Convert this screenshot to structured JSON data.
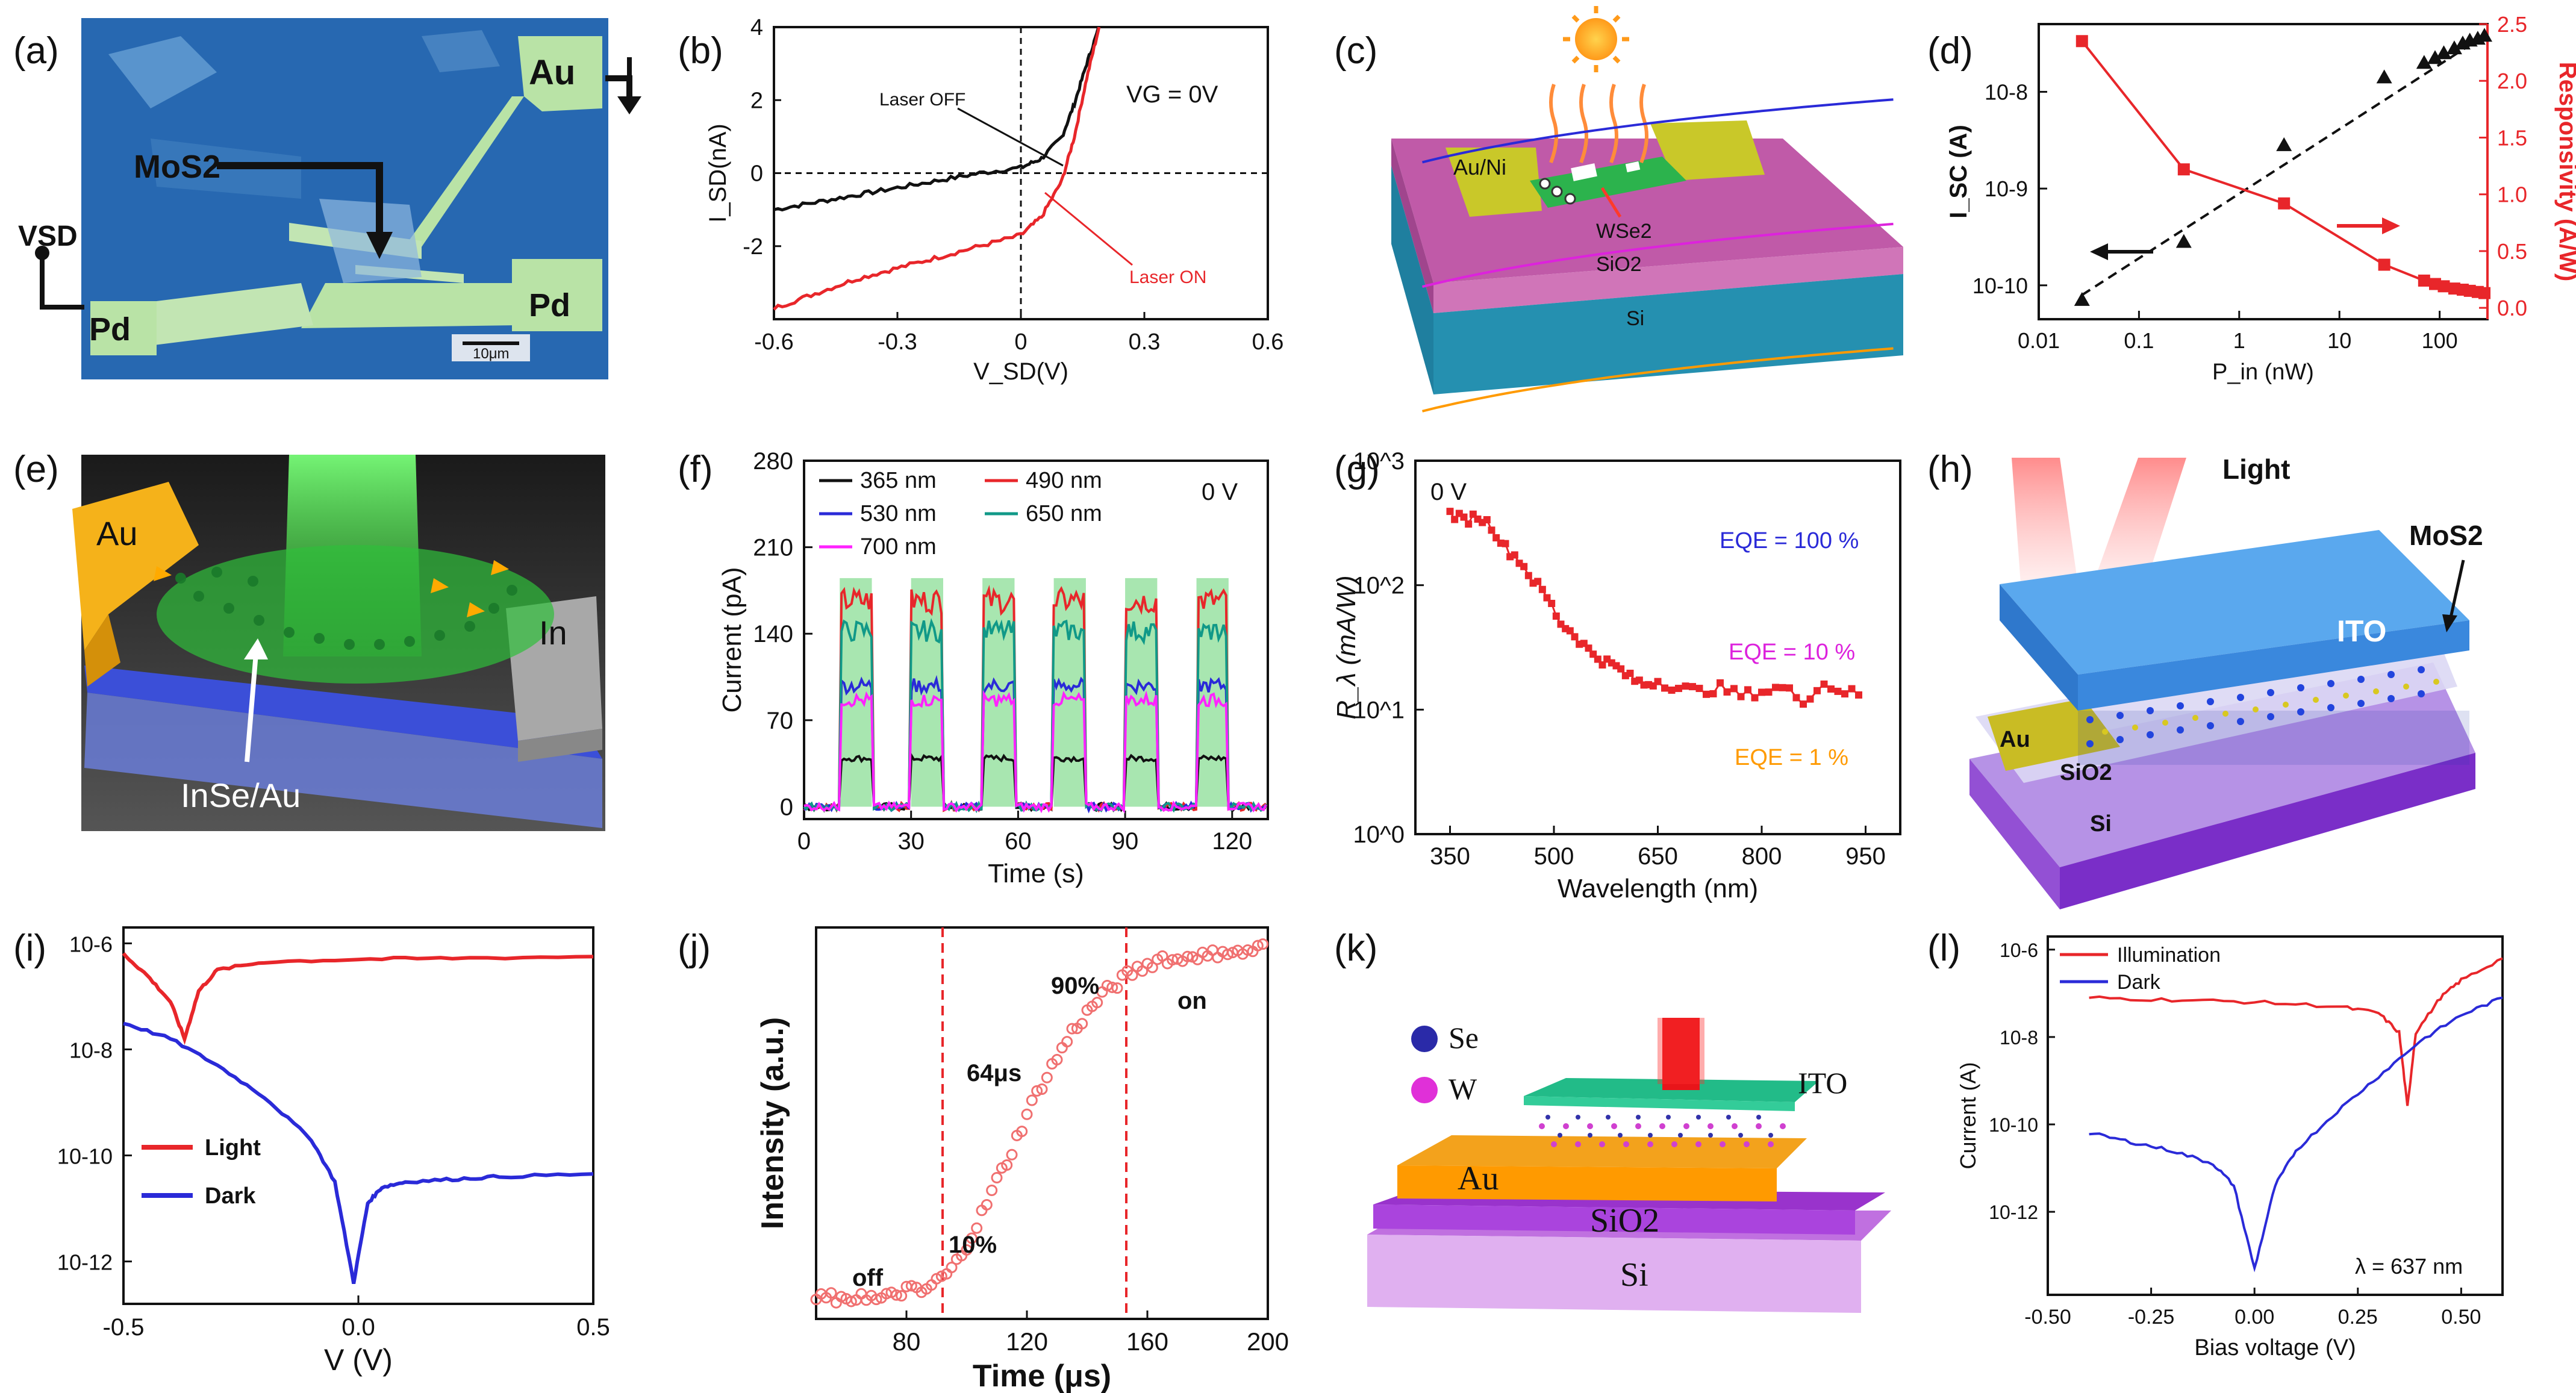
{
  "panel_labels": [
    "(a)",
    "(b)",
    "(c)",
    "(d)",
    "(e)",
    "(f)",
    "(g)",
    "(h)",
    "(i)",
    "(j)",
    "(k)",
    "(l)"
  ],
  "colors": {
    "red": "#e8262a",
    "blue": "#2a2ad8",
    "black": "#111111",
    "teal": "#119988",
    "magenta": "#ff22ff",
    "green_box": "#a8e6b0",
    "orange": "#ff9a00",
    "purple": "#b43ce0"
  },
  "a": {
    "labels": {
      "au": "Au",
      "mos2": "MoS2",
      "vsd": "VSD",
      "pd_left": "Pd",
      "pd_right": "Pd",
      "scale": "10μm"
    }
  },
  "b": {
    "chart_data": {
      "type": "line",
      "title": "",
      "xlabel": "V_SD(V)",
      "ylabel": "I_SD(nA)",
      "xlim": [
        -0.6,
        0.6
      ],
      "ylim": [
        -4,
        4
      ],
      "xticks": [
        "-0.6",
        "-0.3",
        "0",
        "0.3",
        "0.6"
      ],
      "yticks": [
        "-2",
        "0",
        "2",
        "4"
      ],
      "annotations": [
        "Laser OFF",
        "Laser ON",
        "VG = 0V"
      ],
      "series": [
        {
          "name": "Laser OFF",
          "color": "#111111",
          "x": [
            -0.6,
            -0.5,
            -0.4,
            -0.3,
            -0.2,
            -0.1,
            0,
            0.05,
            0.1,
            0.13,
            0.16,
            0.19
          ],
          "y": [
            -1.0,
            -0.8,
            -0.6,
            -0.4,
            -0.2,
            0.0,
            0.15,
            0.4,
            1.0,
            1.9,
            3.0,
            4.0
          ]
        },
        {
          "name": "Laser ON",
          "color": "#e8262a",
          "x": [
            -0.6,
            -0.5,
            -0.4,
            -0.3,
            -0.2,
            -0.1,
            0,
            0.05,
            0.1,
            0.13,
            0.16,
            0.19
          ],
          "y": [
            -3.7,
            -3.3,
            -2.9,
            -2.6,
            -2.3,
            -2.0,
            -1.7,
            -1.2,
            -0.2,
            1.0,
            2.6,
            4.0
          ]
        }
      ]
    }
  },
  "c": {
    "labels": {
      "auni": "Au/Ni",
      "wse2": "WSe2",
      "sio2": "SiO2",
      "si": "Si"
    }
  },
  "d": {
    "chart_data": {
      "type": "scatter",
      "xlabel": "P_in (nW)",
      "ylabel_left": "I_SC (A)",
      "ylabel_right": "Responsivity (A/W)",
      "xscale": "log",
      "xlim": [
        0.01,
        300
      ],
      "xticks": [
        "0.01",
        "0.1",
        "1",
        "10",
        "100"
      ],
      "yticks_left": [
        "10-10",
        "10-9",
        "10-8"
      ],
      "yticks_right": [
        "0.0",
        "0.5",
        "1.0",
        "1.5",
        "2.0",
        "2.5"
      ],
      "ylim_right": [
        0,
        2.5
      ],
      "series": [
        {
          "name": "Isc",
          "color": "#111111",
          "marker": "triangle",
          "x": [
            0.027,
            0.28,
            2.8,
            28,
            70,
            90,
            110,
            140,
            170,
            200,
            240,
            280
          ],
          "log10y": [
            -10.15,
            -9.55,
            -8.55,
            -7.85,
            -7.7,
            -7.65,
            -7.6,
            -7.55,
            -7.5,
            -7.47,
            -7.45,
            -7.42
          ]
        },
        {
          "name": "Responsivity",
          "color": "#e8262a",
          "marker": "square",
          "x": [
            0.027,
            0.28,
            2.8,
            28,
            70,
            90,
            110,
            140,
            170,
            200,
            240,
            280
          ],
          "y": [
            2.35,
            1.22,
            0.92,
            0.38,
            0.24,
            0.21,
            0.19,
            0.17,
            0.16,
            0.15,
            0.14,
            0.13
          ]
        }
      ]
    }
  },
  "e": {
    "labels": {
      "au": "Au",
      "in": "In",
      "inse": "InSe/Au"
    }
  },
  "f": {
    "chart_data": {
      "type": "line",
      "xlabel": "Time (s)",
      "ylabel": "Current (pA)",
      "xlim": [
        0,
        130
      ],
      "ylim": [
        -10,
        280
      ],
      "xticks": [
        "0",
        "30",
        "60",
        "90",
        "120"
      ],
      "yticks": [
        "0",
        "70",
        "140",
        "210",
        "280"
      ],
      "annotation": "0 V",
      "on_intervals": [
        [
          10,
          19
        ],
        [
          30,
          39
        ],
        [
          50,
          59
        ],
        [
          70,
          79
        ],
        [
          90,
          99
        ],
        [
          110,
          119
        ]
      ],
      "series": [
        {
          "name": "365 nm",
          "color": "#111111",
          "on": 40
        },
        {
          "name": "490 nm",
          "color": "#e8262a",
          "on": 170
        },
        {
          "name": "530 nm",
          "color": "#2a2ad8",
          "on": 100
        },
        {
          "name": "650 nm",
          "color": "#119988",
          "on": 145
        },
        {
          "name": "700 nm",
          "color": "#ff22ff",
          "on": 88
        }
      ]
    }
  },
  "g": {
    "chart_data": {
      "type": "scatter",
      "xlabel": "Wavelength (nm)",
      "ylabel": "R_λ (mA/W)",
      "xlim": [
        300,
        1000
      ],
      "yscale": "log",
      "ylim": [
        1,
        1000
      ],
      "xticks": [
        "350",
        "500",
        "650",
        "800",
        "950"
      ],
      "yticks": [
        "10^0",
        "10^1",
        "10^2",
        "10^3"
      ],
      "annotation": "0 V",
      "lines": [
        {
          "name": "EQE = 100 %",
          "color": "#2a2ad8",
          "eqe": 1.0
        },
        {
          "name": "EQE = 10 %",
          "color": "#dd22dd",
          "eqe": 0.1
        },
        {
          "name": "EQE = 1 %",
          "color": "#ff9a00",
          "eqe": 0.01
        }
      ],
      "data": {
        "x": [
          350,
          370,
          390,
          410,
          430,
          450,
          470,
          490,
          510,
          530,
          550,
          570,
          590,
          610,
          630,
          650,
          680,
          710,
          740,
          770,
          800,
          830,
          860,
          890,
          920,
          950
        ],
        "y": [
          380,
          330,
          360,
          300,
          200,
          160,
          110,
          80,
          50,
          40,
          30,
          25,
          22,
          18,
          16,
          17,
          15,
          14,
          15,
          13,
          14,
          15,
          12,
          16,
          14,
          13
        ]
      }
    }
  },
  "h": {
    "labels": {
      "light": "Light",
      "mos2": "MoS2",
      "ito": "ITO",
      "au": "Au",
      "sio2": "SiO2",
      "si": "Si"
    }
  },
  "i": {
    "chart_data": {
      "type": "line",
      "xlabel": "V (V)",
      "ylabel": "",
      "xlim": [
        -0.5,
        0.5
      ],
      "yscale": "log",
      "xticks": [
        "-0.5",
        "0.0",
        "0.5"
      ],
      "yticks": [
        "10-12",
        "10-10",
        "10-8",
        "10-6"
      ],
      "legend": [
        "Light",
        "Dark"
      ],
      "series": [
        {
          "name": "Light",
          "color": "#e8262a",
          "x": [
            -0.5,
            -0.45,
            -0.4,
            -0.37,
            -0.34,
            -0.3,
            -0.2,
            0,
            0.2,
            0.5
          ],
          "log10y": [
            -6.2,
            -6.6,
            -7.1,
            -7.8,
            -6.9,
            -6.5,
            -6.35,
            -6.3,
            -6.28,
            -6.25
          ]
        },
        {
          "name": "Dark",
          "color": "#2a2ad8",
          "x": [
            -0.5,
            -0.4,
            -0.3,
            -0.2,
            -0.1,
            -0.05,
            -0.01,
            0.02,
            0.05,
            0.1,
            0.2,
            0.3,
            0.5
          ],
          "log10y": [
            -7.5,
            -7.8,
            -8.3,
            -8.9,
            -9.7,
            -10.5,
            -12.4,
            -10.9,
            -10.6,
            -10.5,
            -10.45,
            -10.4,
            -10.35
          ]
        }
      ]
    }
  },
  "j": {
    "chart_data": {
      "type": "scatter",
      "xlabel": "Time (μs)",
      "ylabel": "Intensity (a.u.)",
      "xlim": [
        50,
        200
      ],
      "ylim": [
        0,
        1.05
      ],
      "xticks": [
        "80",
        "120",
        "160",
        "200"
      ],
      "annotations": [
        "off",
        "10%",
        "64μs",
        "90%",
        "on"
      ],
      "markers_x": [
        92,
        153
      ],
      "x": [
        50,
        55,
        60,
        65,
        70,
        75,
        80,
        85,
        90,
        95,
        100,
        105,
        110,
        115,
        120,
        125,
        130,
        135,
        140,
        145,
        150,
        155,
        160,
        165,
        170,
        175,
        180,
        185,
        190,
        195,
        200
      ],
      "y": [
        0.05,
        0.06,
        0.04,
        0.07,
        0.05,
        0.06,
        0.08,
        0.07,
        0.1,
        0.13,
        0.2,
        0.28,
        0.37,
        0.45,
        0.55,
        0.63,
        0.7,
        0.77,
        0.82,
        0.87,
        0.9,
        0.93,
        0.95,
        0.97,
        0.96,
        0.98,
        0.97,
        0.99,
        0.98,
        0.99,
        1.0
      ]
    }
  },
  "k": {
    "labels": {
      "se": "Se",
      "w": "W",
      "ito": "ITO",
      "au": "Au",
      "sio2": "SiO2",
      "si": "Si"
    }
  },
  "l": {
    "chart_data": {
      "type": "line",
      "xlabel": "Bias voltage (V)",
      "ylabel": "Current (A)",
      "xlim": [
        -0.5,
        0.6
      ],
      "yscale": "log",
      "xticks": [
        "-0.50",
        "-0.25",
        "0.00",
        "0.25",
        "0.50"
      ],
      "yticks": [
        "10-12",
        "10-10",
        "10-8",
        "10-6"
      ],
      "legend": [
        "Illumination",
        "Dark"
      ],
      "annotation": "λ = 637 nm",
      "series": [
        {
          "name": "Illumination",
          "color": "#e8262a",
          "x": [
            -0.4,
            -0.2,
            0,
            0.2,
            0.3,
            0.35,
            0.37,
            0.39,
            0.45,
            0.5,
            0.6
          ],
          "log10y": [
            -7.1,
            -7.15,
            -7.2,
            -7.3,
            -7.45,
            -7.9,
            -9.6,
            -7.9,
            -7.1,
            -6.7,
            -6.2
          ]
        },
        {
          "name": "Dark",
          "color": "#2a2ad8",
          "x": [
            -0.4,
            -0.3,
            -0.2,
            -0.1,
            -0.05,
            0,
            0.05,
            0.1,
            0.2,
            0.3,
            0.4,
            0.5,
            0.6
          ],
          "log10y": [
            -10.2,
            -10.4,
            -10.6,
            -10.9,
            -11.4,
            -13.3,
            -11.4,
            -10.6,
            -9.7,
            -8.9,
            -8.1,
            -7.5,
            -7.1
          ]
        }
      ]
    }
  }
}
